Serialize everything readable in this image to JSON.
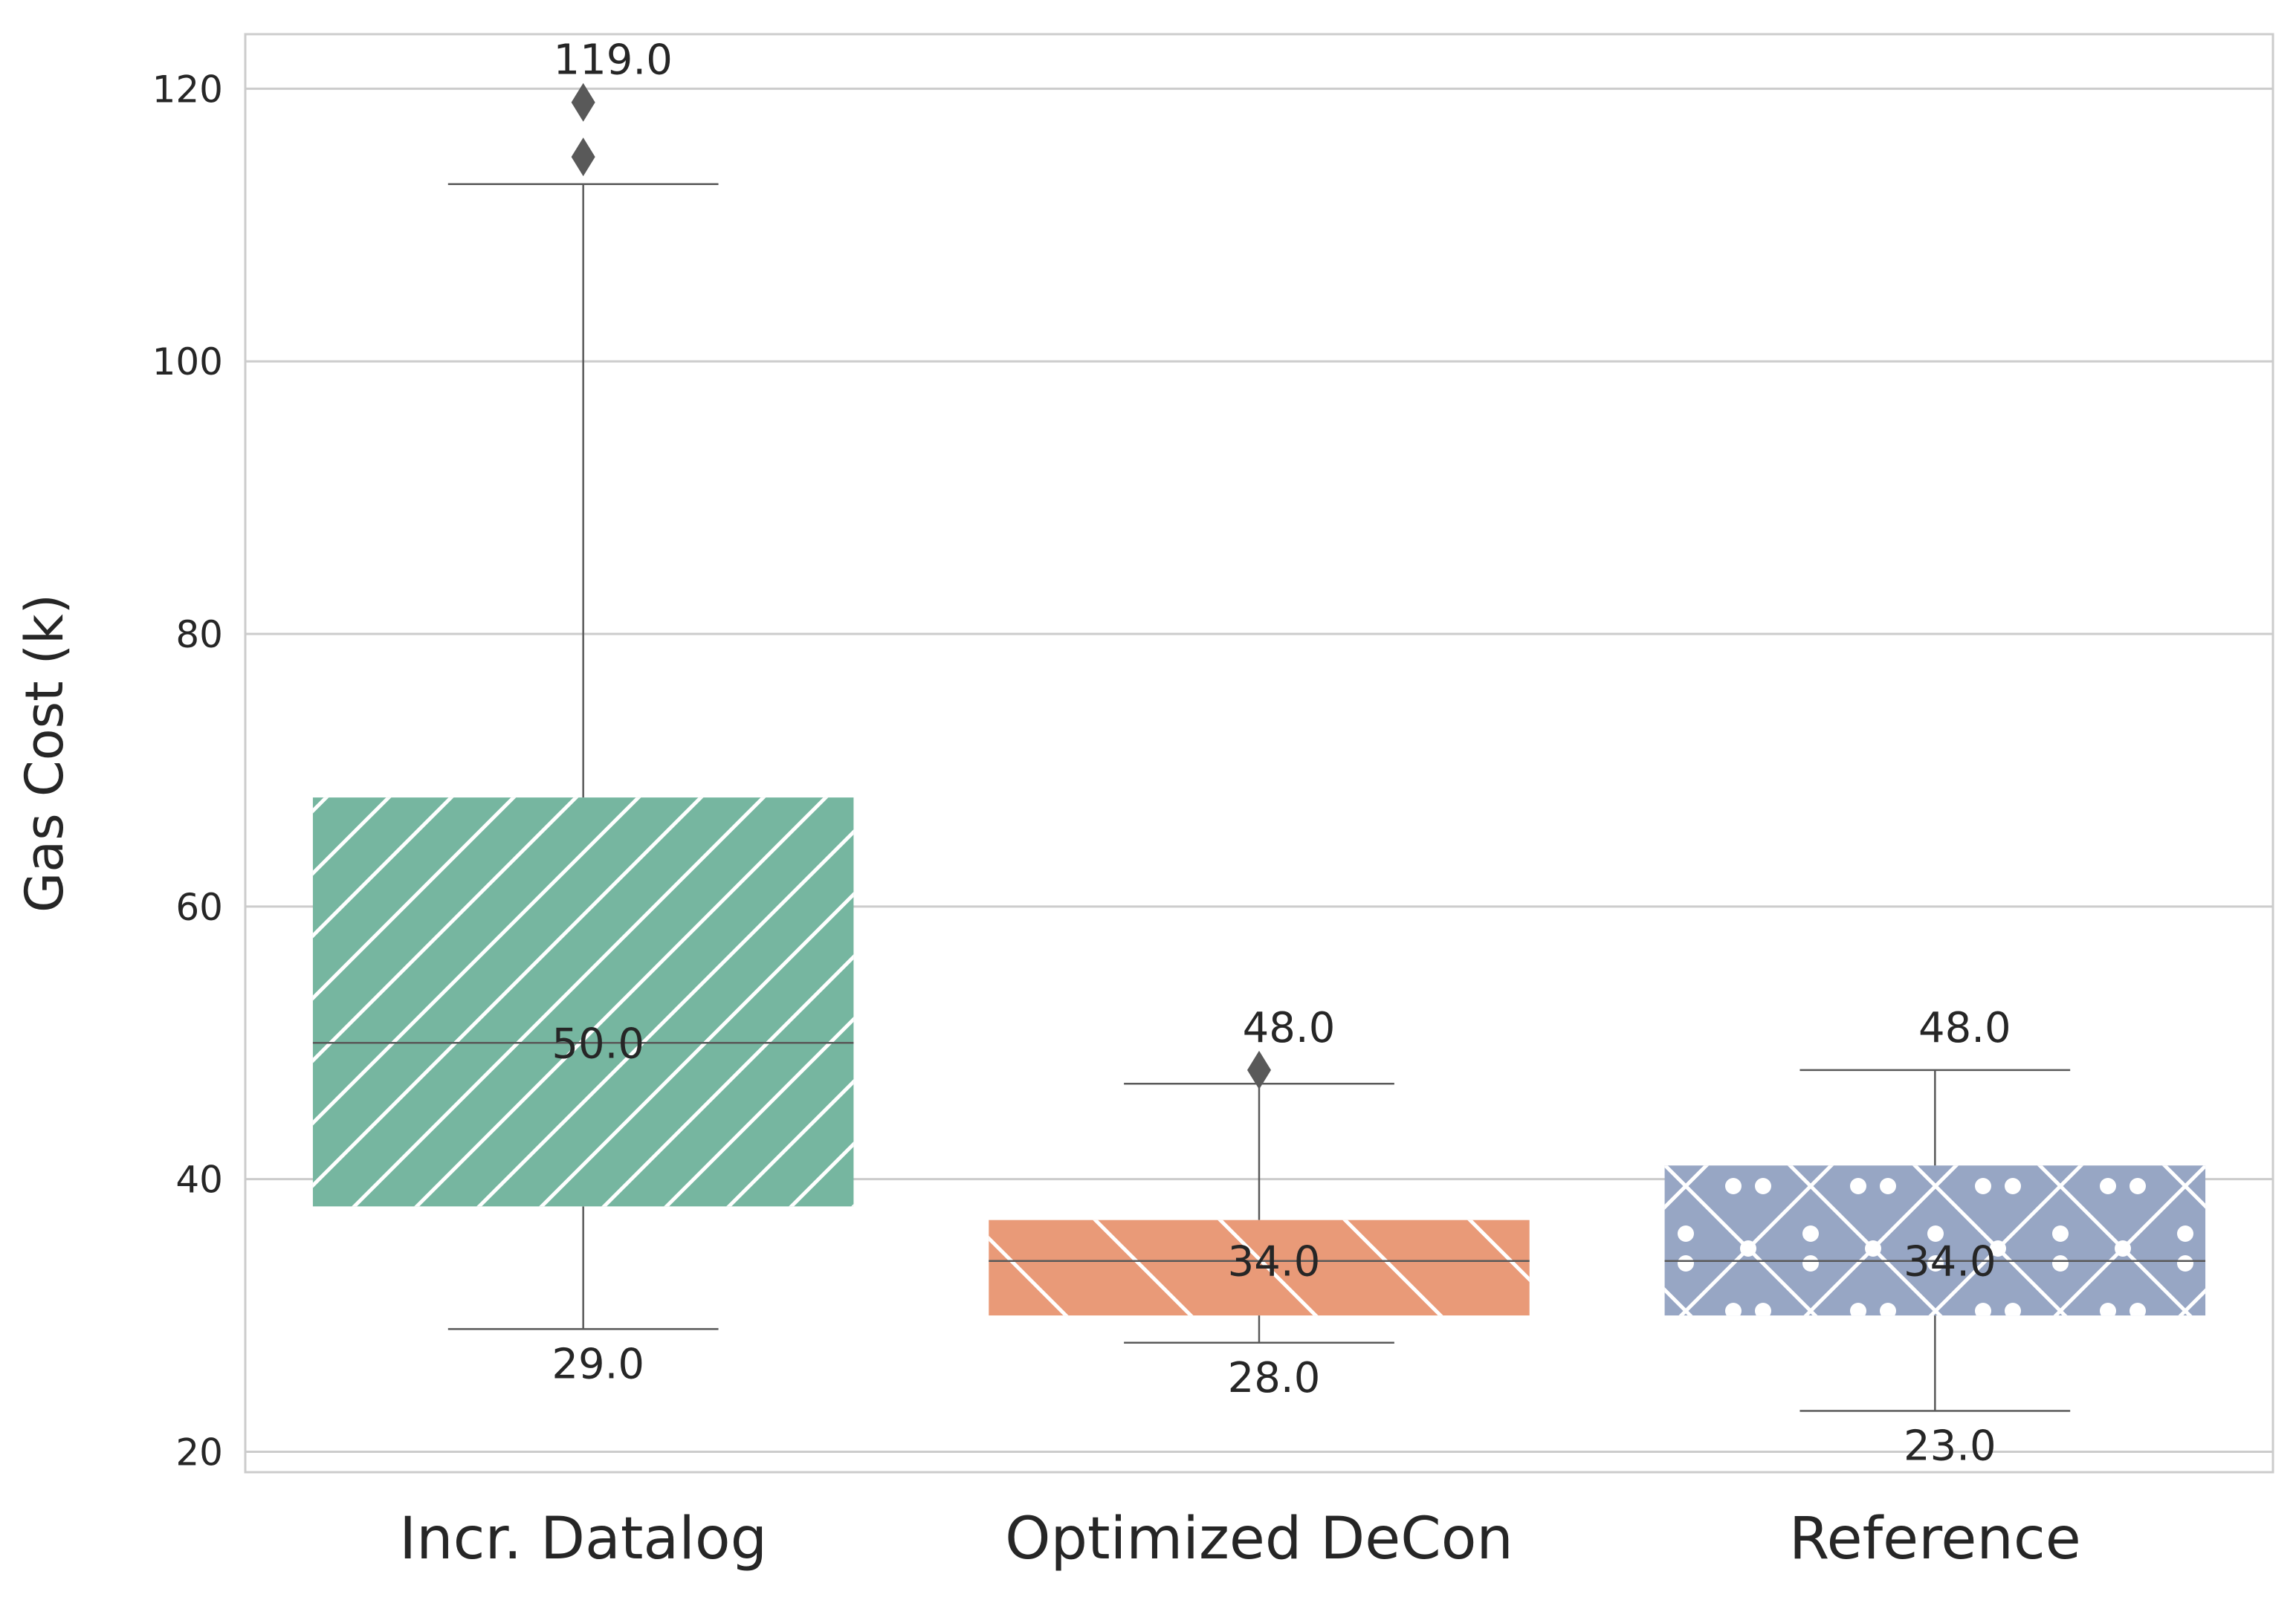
{
  "chart_data": {
    "type": "box",
    "title": "",
    "xlabel": "",
    "ylabel": "Gas Cost (k)",
    "ylim": [
      18.5,
      124.0
    ],
    "yticks": [
      20,
      40,
      60,
      80,
      100,
      120
    ],
    "grid": true,
    "categories": [
      "Incr. Datalog",
      "Optimized DeCon",
      "Reference"
    ],
    "series": [
      {
        "category": "Incr. Datalog",
        "color": "#76b6a0",
        "hatch": "diagonal-forward",
        "whisker_low": 29.0,
        "q1": 38.0,
        "median": 50.0,
        "q3": 68.0,
        "whisker_high": 113.0,
        "outliers": [
          115.0,
          119.0
        ],
        "labels": {
          "max": "119.0",
          "median": "50.0",
          "min": "29.0"
        }
      },
      {
        "category": "Optimized DeCon",
        "color": "#e99a78",
        "hatch": "diagonal-back",
        "whisker_low": 28.0,
        "q1": 30.0,
        "median": 34.0,
        "q3": 37.0,
        "whisker_high": 47.0,
        "outliers": [
          48.0
        ],
        "labels": {
          "max": "48.0",
          "median": "34.0",
          "min": "28.0"
        }
      },
      {
        "category": "Reference",
        "color": "#97a6c4",
        "hatch": "cross-dots",
        "whisker_low": 23.0,
        "q1": 30.0,
        "median": 34.0,
        "q3": 41.0,
        "whisker_high": 48.0,
        "outliers": [],
        "labels": {
          "max": "48.0",
          "median": "34.0",
          "min": "23.0"
        }
      }
    ]
  }
}
